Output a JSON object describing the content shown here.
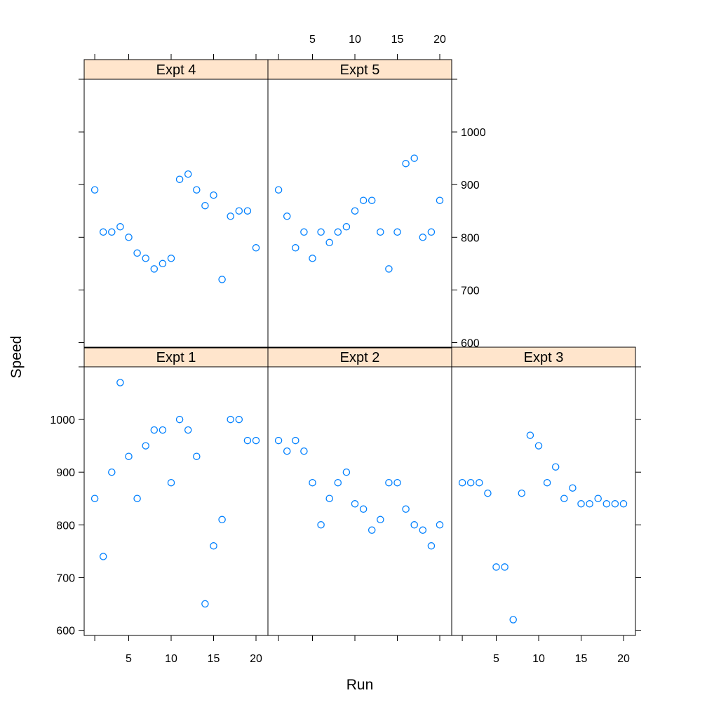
{
  "chart_data": {
    "type": "scatter",
    "title": "",
    "xlabel": "Run",
    "ylabel": "Speed",
    "xlim": [
      0,
      21
    ],
    "ylim": [
      590,
      1100
    ],
    "x_ticks": [
      5,
      10,
      15,
      20
    ],
    "y_ticks": [
      600,
      700,
      800,
      900,
      1000
    ],
    "point_color": "#0080ff",
    "strip_color": "#ffe5cc",
    "x": [
      1,
      2,
      3,
      4,
      5,
      6,
      7,
      8,
      9,
      10,
      11,
      12,
      13,
      14,
      15,
      16,
      17,
      18,
      19,
      20
    ],
    "panels": [
      {
        "name": "Expt 1",
        "values": [
          850,
          740,
          900,
          1070,
          930,
          850,
          950,
          980,
          980,
          880,
          1000,
          980,
          930,
          650,
          760,
          810,
          1000,
          1000,
          960,
          960
        ]
      },
      {
        "name": "Expt 2",
        "values": [
          960,
          940,
          960,
          940,
          880,
          800,
          850,
          880,
          900,
          840,
          830,
          790,
          810,
          880,
          880,
          830,
          800,
          790,
          760,
          800
        ]
      },
      {
        "name": "Expt 3",
        "values": [
          880,
          880,
          880,
          860,
          720,
          720,
          620,
          860,
          970,
          950,
          880,
          910,
          850,
          870,
          840,
          840,
          850,
          840,
          840,
          840
        ]
      },
      {
        "name": "Expt 4",
        "values": [
          890,
          810,
          810,
          820,
          800,
          770,
          760,
          740,
          750,
          760,
          910,
          920,
          890,
          860,
          880,
          720,
          840,
          850,
          850,
          780
        ]
      },
      {
        "name": "Expt 5",
        "values": [
          890,
          840,
          780,
          810,
          760,
          810,
          790,
          810,
          820,
          850,
          870,
          870,
          810,
          740,
          810,
          940,
          950,
          800,
          810,
          870
        ]
      }
    ]
  }
}
